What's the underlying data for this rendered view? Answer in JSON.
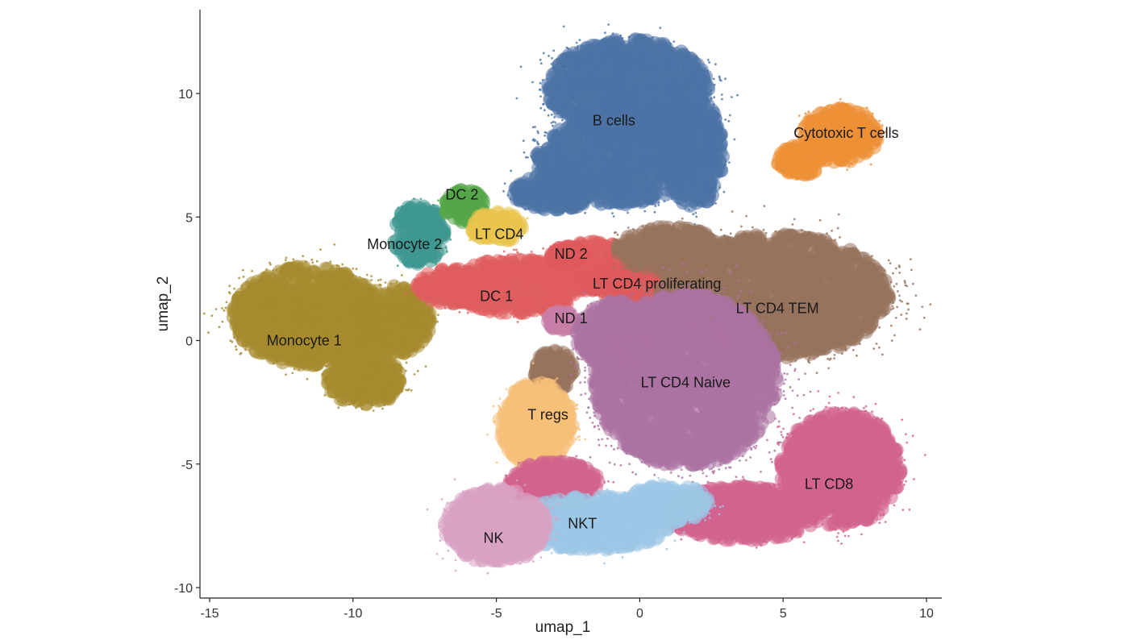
{
  "chart_data": {
    "type": "scatter",
    "title": "",
    "xlabel": "umap_1",
    "ylabel": "umap_2",
    "xlim": [
      -15.2,
      10.5
    ],
    "ylim": [
      -10.2,
      13.2
    ],
    "x_ticks": [
      -15,
      -10,
      -5,
      0,
      5,
      10
    ],
    "y_ticks": [
      -10,
      -5,
      0,
      5,
      10
    ],
    "grid": false,
    "legend": "none",
    "clusters": [
      {
        "name": "Monocyte 1",
        "color": "#a58a2e",
        "label_at": [
          -11.7,
          0.0
        ],
        "blobs": [
          [
            -11.6,
            1.0,
            2.6,
            2.0
          ],
          [
            -9.6,
            -1.6,
            1.3,
            1.0
          ],
          [
            -8.6,
            0.8,
            1.3,
            1.4
          ]
        ]
      },
      {
        "name": "Monocyte 2",
        "color": "#3e988f",
        "label_at": [
          -8.2,
          3.9
        ],
        "blobs": [
          [
            -7.7,
            4.3,
            0.9,
            1.2
          ]
        ]
      },
      {
        "name": "DC 2",
        "color": "#55a648",
        "label_at": [
          -6.2,
          5.9
        ],
        "blobs": [
          [
            -6.1,
            5.4,
            0.7,
            0.7
          ]
        ]
      },
      {
        "name": "LT CD4",
        "color": "#e9c54f",
        "label_at": [
          -4.9,
          4.3
        ],
        "blobs": [
          [
            -5.0,
            4.6,
            0.9,
            0.6
          ]
        ]
      },
      {
        "name": "DC 1",
        "color": "#e05c5e",
        "label_at": [
          -5.0,
          1.8
        ],
        "blobs": [
          [
            -4.3,
            2.2,
            2.4,
            1.1
          ],
          [
            -1.6,
            3.0,
            1.6,
            1.0
          ],
          [
            -6.6,
            2.2,
            1.2,
            0.7
          ]
        ]
      },
      {
        "name": "ND 2",
        "color": "#de5a5c",
        "label_at": [
          -2.4,
          3.5
        ],
        "blobs": [
          [
            -2.5,
            3.4,
            0.6,
            0.4
          ]
        ]
      },
      {
        "name": "ND 1",
        "color": "#c87da8",
        "label_at": [
          -2.4,
          0.9
        ],
        "blobs": [
          [
            -2.7,
            0.8,
            0.5,
            0.4
          ]
        ]
      },
      {
        "name": "B cells",
        "color": "#4c73a5",
        "label_at": [
          -0.9,
          8.9
        ],
        "blobs": [
          [
            -0.4,
            10.2,
            2.8,
            2.0
          ],
          [
            -0.8,
            7.3,
            2.8,
            1.8
          ],
          [
            1.9,
            7.6,
            1.0,
            2.2
          ],
          [
            -3.0,
            6.0,
            1.4,
            0.7
          ]
        ]
      },
      {
        "name": "Cytotoxic T cells",
        "color": "#ec8f36",
        "label_at": [
          7.2,
          8.4
        ],
        "blobs": [
          [
            7.0,
            8.3,
            1.3,
            1.1
          ],
          [
            5.6,
            7.3,
            0.8,
            0.6
          ]
        ]
      },
      {
        "name": "LT CD4 proliferating",
        "color": "#df5b5d",
        "label_at": [
          0.6,
          2.3
        ],
        "blobs": [
          [
            -0.2,
            2.4,
            1.8,
            0.7
          ]
        ]
      },
      {
        "name": "LT CD4 TEM",
        "color": "#98725c",
        "label_at": [
          4.8,
          1.3
        ],
        "blobs": [
          [
            4.7,
            1.8,
            4.0,
            2.5
          ],
          [
            1.0,
            3.7,
            1.8,
            0.9
          ],
          [
            -3.0,
            -1.2,
            0.7,
            0.8
          ]
        ]
      },
      {
        "name": "LT CD4 Naive",
        "color": "#ac72a2",
        "label_at": [
          1.6,
          -1.7
        ],
        "blobs": [
          [
            1.6,
            -1.6,
            3.2,
            3.5
          ],
          [
            -0.8,
            0.2,
            1.4,
            1.4
          ]
        ]
      },
      {
        "name": "T regs",
        "color": "#f6bf79",
        "label_at": [
          -3.2,
          -3.0
        ],
        "blobs": [
          [
            -3.6,
            -3.4,
            1.3,
            1.7
          ]
        ]
      },
      {
        "name": "LT CD8",
        "color": "#d1638e",
        "label_at": [
          6.6,
          -5.8
        ],
        "blobs": [
          [
            7.0,
            -5.2,
            2.1,
            2.3
          ],
          [
            3.6,
            -7.0,
            2.6,
            1.1
          ],
          [
            -3.0,
            -5.8,
            1.6,
            0.9
          ]
        ]
      },
      {
        "name": "NKT",
        "color": "#9cc7e5",
        "label_at": [
          -2.0,
          -7.4
        ],
        "blobs": [
          [
            -1.6,
            -7.4,
            2.7,
            1.1
          ],
          [
            1.0,
            -6.6,
            1.4,
            0.8
          ]
        ]
      },
      {
        "name": "NK",
        "color": "#d8a3c3",
        "label_at": [
          -5.1,
          -8.0
        ],
        "blobs": [
          [
            -5.0,
            -7.5,
            1.8,
            1.5
          ]
        ]
      }
    ]
  }
}
